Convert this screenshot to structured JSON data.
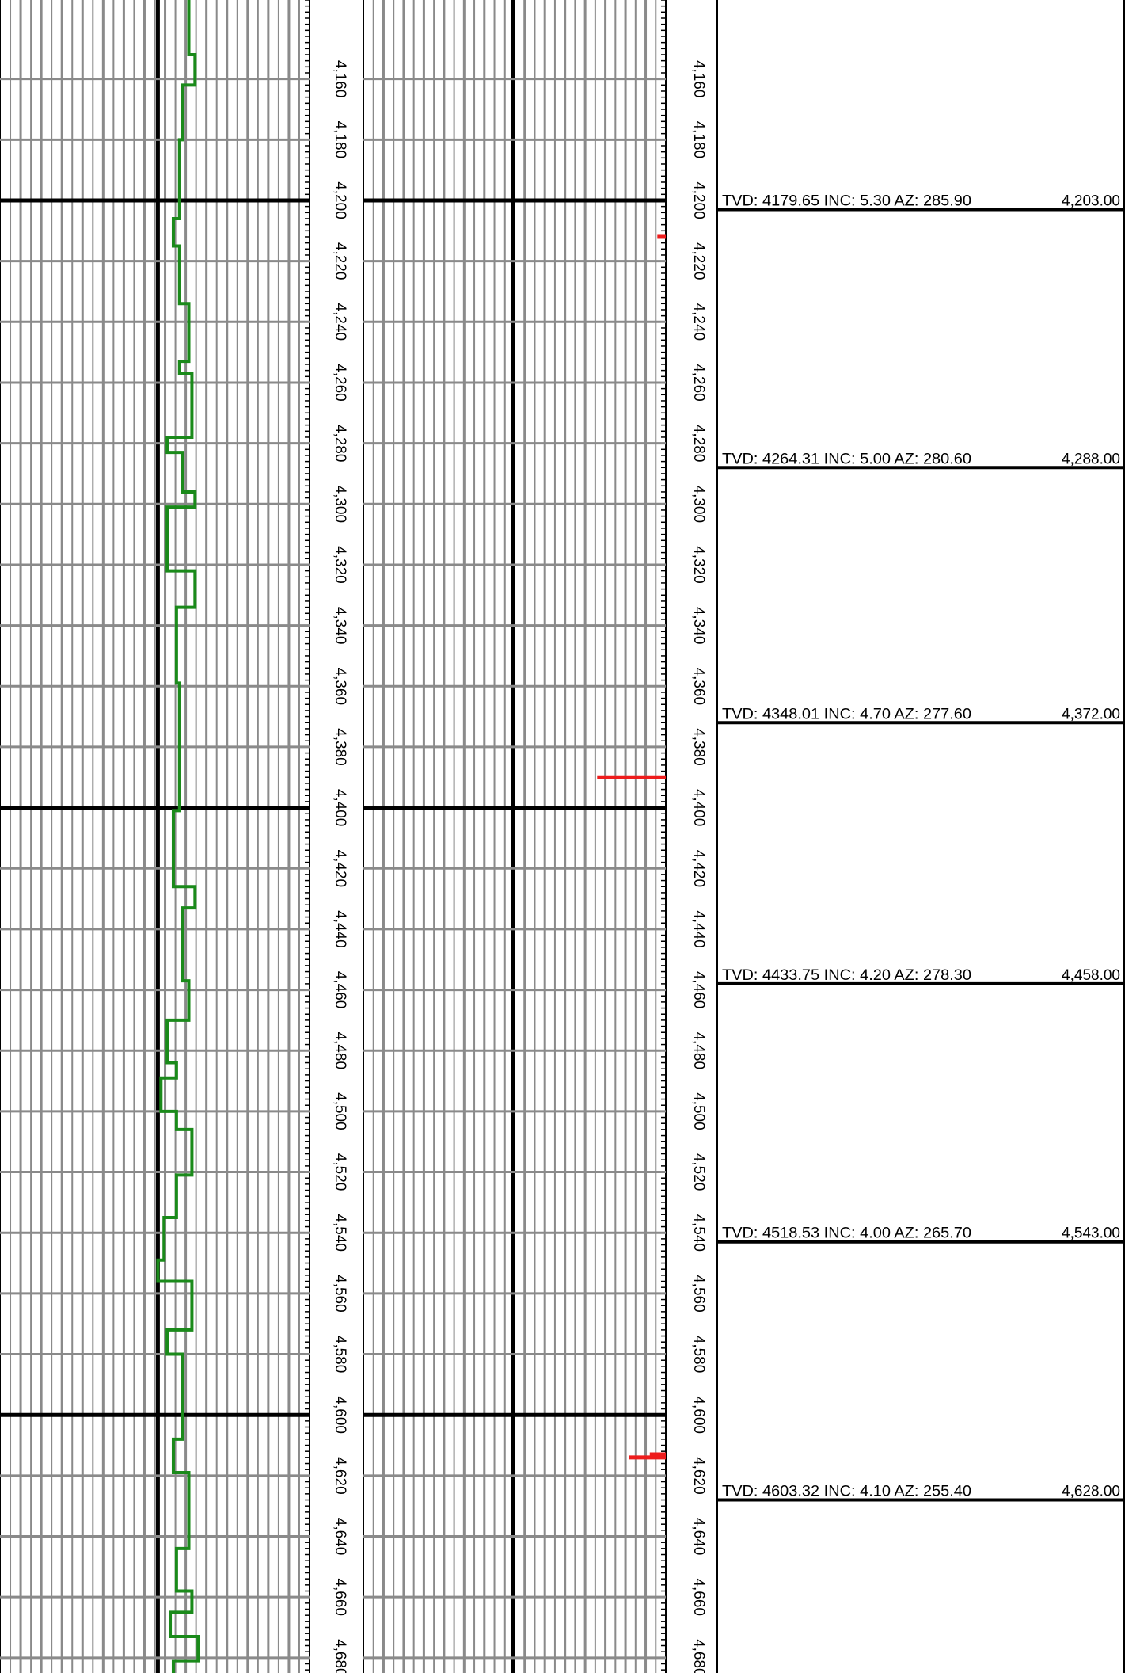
{
  "chart_data": {
    "type": "well-log",
    "ylim": [
      4134,
      4685
    ],
    "yticks": [
      {
        "value": 4160,
        "label": "4,160"
      },
      {
        "value": 4180,
        "label": "4,180"
      },
      {
        "value": 4200,
        "label": "4,200"
      },
      {
        "value": 4220,
        "label": "4,220"
      },
      {
        "value": 4240,
        "label": "4,240"
      },
      {
        "value": 4260,
        "label": "4,260"
      },
      {
        "value": 4280,
        "label": "4,280"
      },
      {
        "value": 4300,
        "label": "4,300"
      },
      {
        "value": 4320,
        "label": "4,320"
      },
      {
        "value": 4340,
        "label": "4,340"
      },
      {
        "value": 4360,
        "label": "4,360"
      },
      {
        "value": 4380,
        "label": "4,380"
      },
      {
        "value": 4400,
        "label": "4,400"
      },
      {
        "value": 4420,
        "label": "4,420"
      },
      {
        "value": 4440,
        "label": "4,440"
      },
      {
        "value": 4460,
        "label": "4,460"
      },
      {
        "value": 4480,
        "label": "4,480"
      },
      {
        "value": 4500,
        "label": "4,500"
      },
      {
        "value": 4520,
        "label": "4,520"
      },
      {
        "value": 4540,
        "label": "4,540"
      },
      {
        "value": 4560,
        "label": "4,560"
      },
      {
        "value": 4580,
        "label": "4,580"
      },
      {
        "value": 4600,
        "label": "4,600"
      },
      {
        "value": 4620,
        "label": "4,620"
      },
      {
        "value": 4640,
        "label": "4,640"
      },
      {
        "value": 4660,
        "label": "4,660"
      },
      {
        "value": 4680,
        "label": "4,680"
      }
    ],
    "major_grid": [
      4200,
      4400,
      4600
    ],
    "grid": true,
    "xlim": [
      0,
      100
    ],
    "curve": {
      "color": "#1a8a1a",
      "step": true,
      "depths": [
        4134,
        4152,
        4162,
        4180,
        4206,
        4215,
        4234,
        4253,
        4257,
        4278,
        4283,
        4296,
        4301,
        4322,
        4334,
        4359,
        4401,
        4426,
        4433,
        4457,
        4470,
        4484,
        4489,
        4500,
        4506,
        4521,
        4535,
        4549,
        4556,
        4572,
        4580,
        4608,
        4619,
        4644,
        4658,
        4665,
        4673,
        4681
      ],
      "values": [
        61,
        63,
        59,
        58,
        56,
        58,
        61,
        58,
        62,
        54,
        59,
        63,
        54,
        63,
        57,
        58,
        56,
        63,
        59,
        61,
        54,
        57,
        52,
        57,
        62,
        57,
        53,
        51,
        62,
        54,
        59,
        56,
        61,
        57,
        62,
        55,
        64,
        56
      ]
    },
    "marks": {
      "color": "#ee1c1c",
      "depths": [
        4212,
        4390,
        4613,
        4614
      ],
      "values": [
        97.2,
        77.3,
        94.7,
        87.9
      ]
    },
    "surveys": [
      {
        "text": "TVD: 4179.65 INC: 5.30 AZ: 285.90",
        "md": {
          "value": 4203,
          "label": "4,203.00"
        }
      },
      {
        "text": "TVD: 4264.31 INC: 5.00 AZ: 280.60",
        "md": {
          "value": 4288,
          "label": "4,288.00"
        }
      },
      {
        "text": "TVD: 4348.01 INC: 4.70 AZ: 277.60",
        "md": {
          "value": 4372,
          "label": "4,372.00"
        }
      },
      {
        "text": "TVD: 4433.75 INC: 4.20 AZ: 278.30",
        "md": {
          "value": 4458,
          "label": "4,458.00"
        }
      },
      {
        "text": "TVD: 4518.53 INC: 4.00 AZ: 265.70",
        "md": {
          "value": 4543,
          "label": "4,543.00"
        }
      },
      {
        "text": "TVD: 4603.32 INC: 4.10 AZ: 255.40",
        "md": {
          "value": 4628,
          "label": "4,628.00"
        }
      }
    ]
  }
}
